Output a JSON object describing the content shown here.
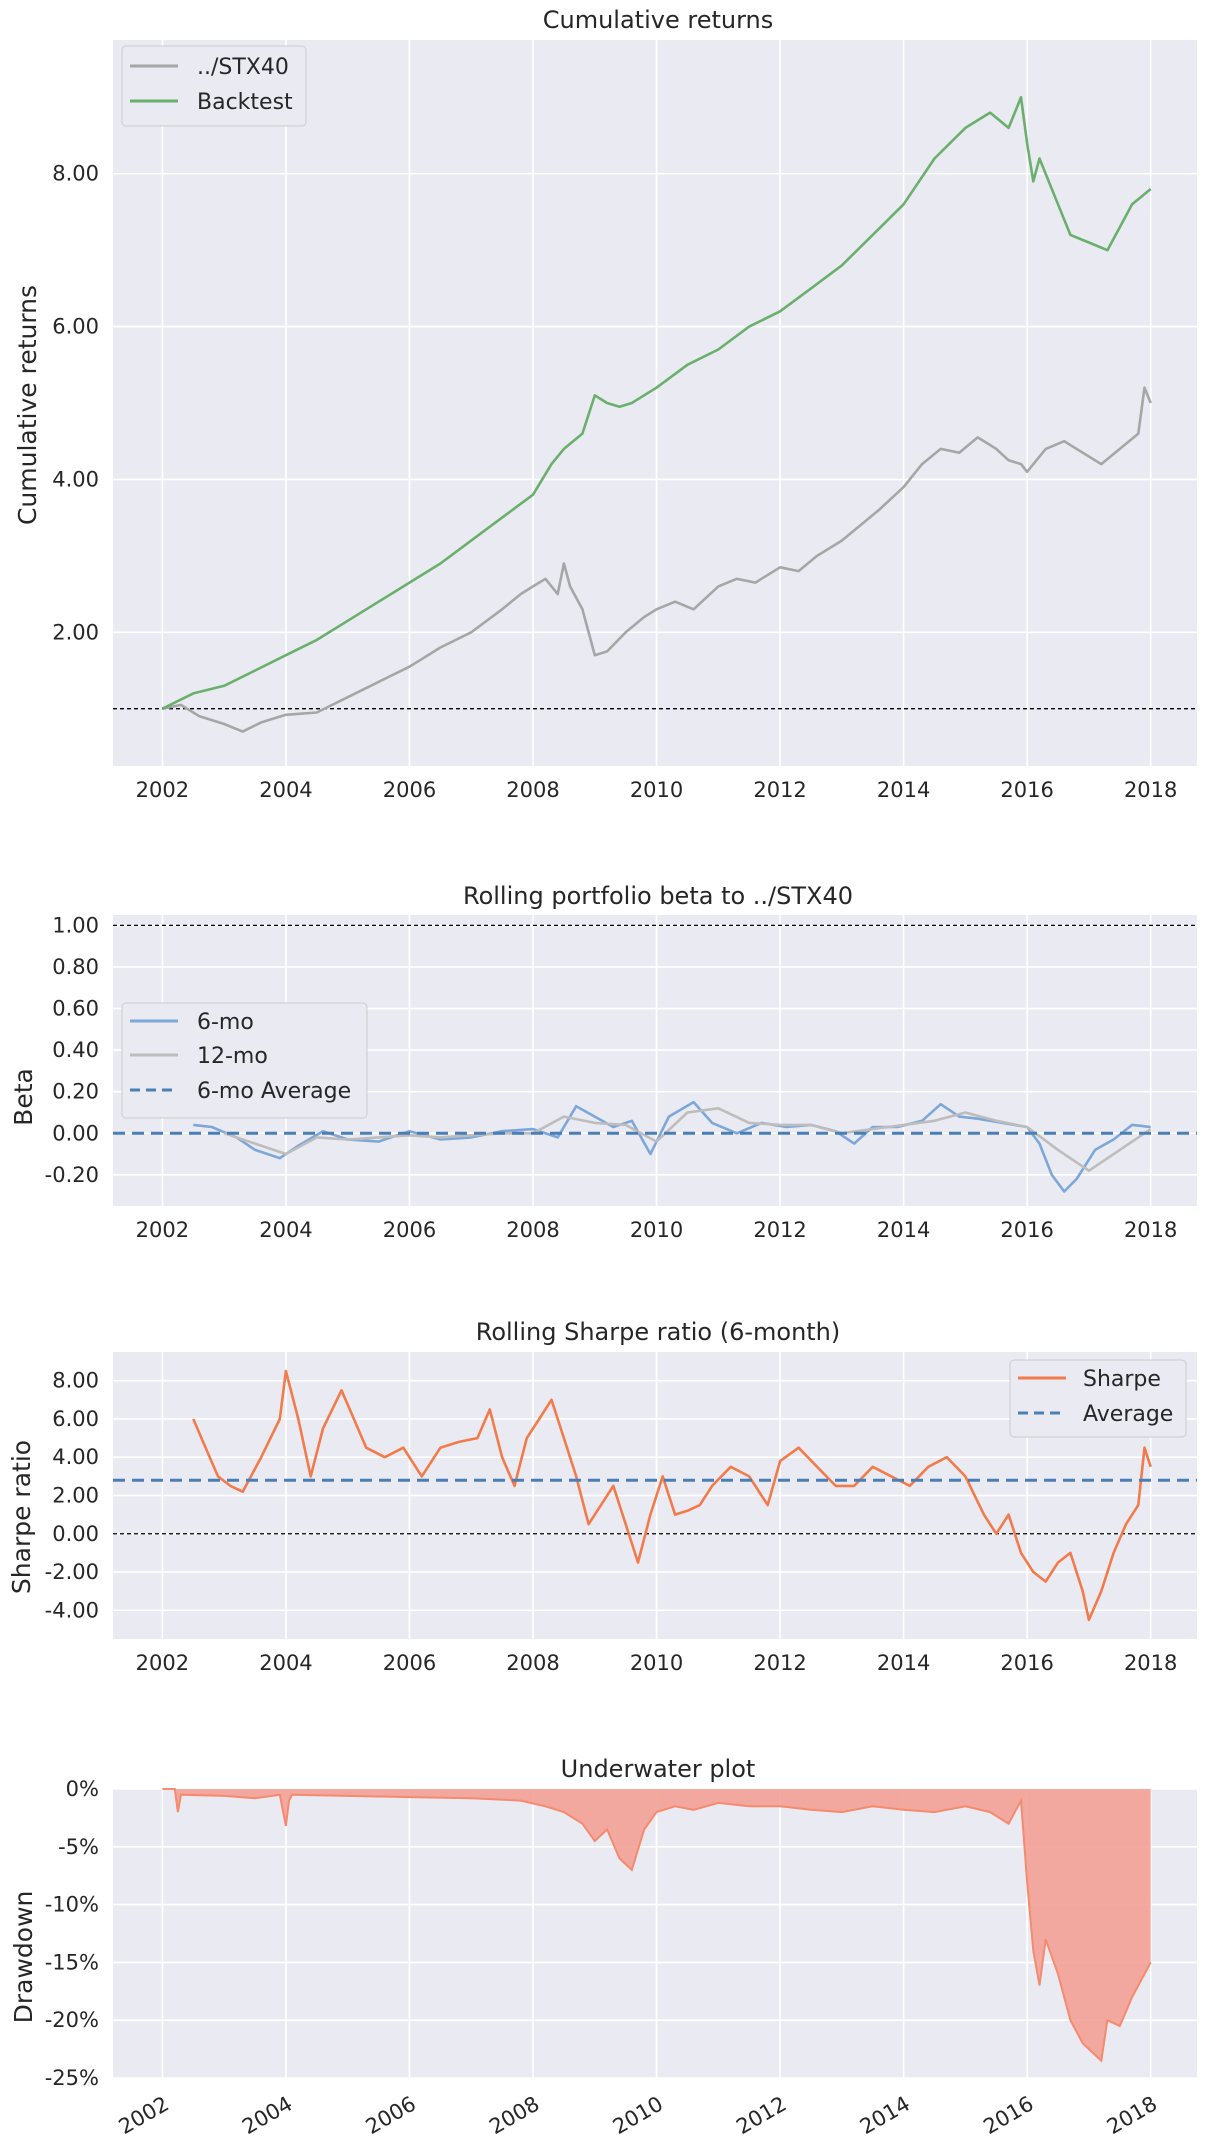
{
  "chart_data": [
    {
      "type": "line",
      "title": "Cumulative returns",
      "ylabel": "Cumulative returns",
      "xlim": [
        2001.2,
        2018.75
      ],
      "ylim": [
        0.25,
        9.75
      ],
      "yticks": [
        2,
        4,
        6,
        8
      ],
      "yticklabels": [
        "2.00",
        "4.00",
        "6.00",
        "8.00"
      ],
      "xticks": [
        2002,
        2004,
        2006,
        2008,
        2010,
        2012,
        2014,
        2016,
        2018
      ],
      "xticklabels": [
        "2002",
        "2004",
        "2006",
        "2008",
        "2010",
        "2012",
        "2014",
        "2016",
        "2018"
      ],
      "hline": 1.0,
      "grid": true,
      "legend_position": "top-left",
      "series": [
        {
          "name": "../STX40",
          "color": "#a6a6a6",
          "x": [
            2002.0,
            2002.3,
            2002.6,
            2003.0,
            2003.3,
            2003.6,
            2004.0,
            2004.5,
            2005.0,
            2005.5,
            2006.0,
            2006.5,
            2007.0,
            2007.5,
            2007.8,
            2008.0,
            2008.2,
            2008.4,
            2008.5,
            2008.6,
            2008.8,
            2009.0,
            2009.2,
            2009.5,
            2009.8,
            2010.0,
            2010.3,
            2010.6,
            2011.0,
            2011.3,
            2011.6,
            2012.0,
            2012.3,
            2012.6,
            2013.0,
            2013.3,
            2013.6,
            2014.0,
            2014.3,
            2014.6,
            2014.9,
            2015.2,
            2015.5,
            2015.7,
            2015.9,
            2016.0,
            2016.3,
            2016.6,
            2016.9,
            2017.2,
            2017.5,
            2017.8,
            2017.9,
            2018.0
          ],
          "y": [
            1.0,
            1.05,
            0.9,
            0.8,
            0.7,
            0.82,
            0.92,
            0.95,
            1.15,
            1.35,
            1.55,
            1.8,
            2.0,
            2.3,
            2.5,
            2.6,
            2.7,
            2.5,
            2.9,
            2.6,
            2.3,
            1.7,
            1.75,
            2.0,
            2.2,
            2.3,
            2.4,
            2.3,
            2.6,
            2.7,
            2.65,
            2.85,
            2.8,
            3.0,
            3.2,
            3.4,
            3.6,
            3.9,
            4.2,
            4.4,
            4.35,
            4.55,
            4.4,
            4.25,
            4.2,
            4.1,
            4.4,
            4.5,
            4.35,
            4.2,
            4.4,
            4.6,
            5.2,
            5.0
          ]
        },
        {
          "name": "Backtest",
          "color": "#6ab06c",
          "x": [
            2002.0,
            2002.5,
            2003.0,
            2003.5,
            2004.0,
            2004.5,
            2005.0,
            2005.5,
            2006.0,
            2006.5,
            2007.0,
            2007.5,
            2008.0,
            2008.3,
            2008.5,
            2008.8,
            2009.0,
            2009.2,
            2009.4,
            2009.6,
            2010.0,
            2010.5,
            2011.0,
            2011.5,
            2012.0,
            2012.5,
            2013.0,
            2013.5,
            2014.0,
            2014.5,
            2015.0,
            2015.4,
            2015.7,
            2015.9,
            2016.0,
            2016.1,
            2016.2,
            2016.5,
            2016.7,
            2017.0,
            2017.3,
            2017.5,
            2017.7,
            2018.0
          ],
          "y": [
            1.0,
            1.2,
            1.3,
            1.5,
            1.7,
            1.9,
            2.15,
            2.4,
            2.65,
            2.9,
            3.2,
            3.5,
            3.8,
            4.2,
            4.4,
            4.6,
            5.1,
            5.0,
            4.95,
            5.0,
            5.2,
            5.5,
            5.7,
            6.0,
            6.2,
            6.5,
            6.8,
            7.2,
            7.6,
            8.2,
            8.6,
            8.8,
            8.6,
            9.0,
            8.4,
            7.9,
            8.2,
            7.6,
            7.2,
            7.1,
            7.0,
            7.3,
            7.6,
            7.8
          ]
        }
      ]
    },
    {
      "type": "line",
      "title": "Rolling portfolio beta to ../STX40",
      "ylabel": "Beta",
      "xlim": [
        2001.2,
        2018.75
      ],
      "ylim": [
        -0.35,
        1.05
      ],
      "yticks": [
        -0.2,
        0,
        0.2,
        0.4,
        0.6,
        0.8,
        1.0
      ],
      "yticklabels": [
        "-0.20",
        "0.00",
        "0.20",
        "0.40",
        "0.60",
        "0.80",
        "1.00"
      ],
      "xticks": [
        2002,
        2004,
        2006,
        2008,
        2010,
        2012,
        2014,
        2016,
        2018
      ],
      "xticklabels": [
        "2002",
        "2004",
        "2006",
        "2008",
        "2010",
        "2012",
        "2014",
        "2016",
        "2018"
      ],
      "hline": 1.0,
      "avg_line": 0.0,
      "grid": true,
      "legend_position": "center-left",
      "series": [
        {
          "name": "6-mo",
          "color": "#7da7d9",
          "x": [
            2002.5,
            2002.8,
            2003.2,
            2003.5,
            2003.9,
            2004.2,
            2004.6,
            2005.0,
            2005.5,
            2006.0,
            2006.5,
            2007.0,
            2007.5,
            2008.0,
            2008.4,
            2008.7,
            2009.0,
            2009.3,
            2009.6,
            2009.9,
            2010.2,
            2010.6,
            2010.9,
            2011.3,
            2011.7,
            2012.1,
            2012.5,
            2012.9,
            2013.2,
            2013.5,
            2013.9,
            2014.3,
            2014.6,
            2014.9,
            2015.2,
            2015.6,
            2016.0,
            2016.2,
            2016.4,
            2016.6,
            2016.8,
            2017.1,
            2017.4,
            2017.7,
            2018.0
          ],
          "y": [
            0.04,
            0.03,
            -0.02,
            -0.08,
            -0.12,
            -0.06,
            0.01,
            -0.03,
            -0.04,
            0.01,
            -0.03,
            -0.02,
            0.01,
            0.02,
            -0.02,
            0.13,
            0.08,
            0.03,
            0.06,
            -0.1,
            0.08,
            0.15,
            0.05,
            0.0,
            0.05,
            0.03,
            0.04,
            0.01,
            -0.05,
            0.03,
            0.03,
            0.06,
            0.14,
            0.08,
            0.07,
            0.05,
            0.03,
            -0.05,
            -0.2,
            -0.28,
            -0.22,
            -0.08,
            -0.03,
            0.04,
            0.03
          ]
        },
        {
          "name": "12-mo",
          "color": "#bdbdbd",
          "x": [
            2003.0,
            2003.5,
            2004.0,
            2004.5,
            2005.0,
            2005.5,
            2006.0,
            2006.5,
            2007.0,
            2007.5,
            2008.0,
            2008.5,
            2009.0,
            2009.5,
            2010.0,
            2010.5,
            2011.0,
            2011.5,
            2012.0,
            2012.5,
            2013.0,
            2013.5,
            2014.0,
            2014.5,
            2015.0,
            2015.5,
            2016.0,
            2016.5,
            2017.0,
            2017.5,
            2018.0
          ],
          "y": [
            0.0,
            -0.05,
            -0.1,
            -0.02,
            -0.03,
            -0.02,
            -0.01,
            -0.02,
            -0.01,
            0.0,
            0.0,
            0.08,
            0.05,
            0.04,
            -0.04,
            0.1,
            0.12,
            0.05,
            0.04,
            0.04,
            0.0,
            0.02,
            0.04,
            0.06,
            0.1,
            0.06,
            0.03,
            -0.08,
            -0.18,
            -0.08,
            0.02
          ]
        }
      ]
    },
    {
      "type": "line",
      "title": "Rolling Sharpe ratio (6-month)",
      "ylabel": "Sharpe ratio",
      "xlim": [
        2001.2,
        2018.75
      ],
      "ylim": [
        -5.5,
        9.5
      ],
      "yticks": [
        -4,
        -2,
        0,
        2,
        4,
        6,
        8
      ],
      "yticklabels": [
        "-4.00",
        "-2.00",
        "0.00",
        "2.00",
        "4.00",
        "6.00",
        "8.00"
      ],
      "xticks": [
        2002,
        2004,
        2006,
        2008,
        2010,
        2012,
        2014,
        2016,
        2018
      ],
      "xticklabels": [
        "2002",
        "2004",
        "2006",
        "2008",
        "2010",
        "2012",
        "2014",
        "2016",
        "2018"
      ],
      "hline": 0.0,
      "avg_line": 2.8,
      "grid": true,
      "legend_position": "top-right",
      "series": [
        {
          "name": "Sharpe",
          "color": "#f37a4a",
          "x": [
            2002.5,
            2002.7,
            2002.9,
            2003.1,
            2003.3,
            2003.6,
            2003.9,
            2004.0,
            2004.2,
            2004.4,
            2004.6,
            2004.9,
            2005.1,
            2005.3,
            2005.6,
            2005.9,
            2006.2,
            2006.5,
            2006.8,
            2007.1,
            2007.3,
            2007.5,
            2007.7,
            2007.9,
            2008.1,
            2008.3,
            2008.5,
            2008.7,
            2008.9,
            2009.1,
            2009.3,
            2009.5,
            2009.7,
            2009.9,
            2010.1,
            2010.3,
            2010.5,
            2010.7,
            2010.9,
            2011.2,
            2011.5,
            2011.8,
            2012.0,
            2012.3,
            2012.6,
            2012.9,
            2013.2,
            2013.5,
            2013.8,
            2014.1,
            2014.4,
            2014.7,
            2015.0,
            2015.3,
            2015.5,
            2015.7,
            2015.9,
            2016.1,
            2016.3,
            2016.5,
            2016.7,
            2016.9,
            2017.0,
            2017.2,
            2017.4,
            2017.6,
            2017.8,
            2017.9,
            2018.0
          ],
          "y": [
            6.0,
            4.5,
            3.0,
            2.5,
            2.2,
            4.0,
            6.0,
            8.5,
            6.0,
            3.0,
            5.5,
            7.5,
            6.0,
            4.5,
            4.0,
            4.5,
            3.0,
            4.5,
            4.8,
            5.0,
            6.5,
            4.0,
            2.5,
            5.0,
            6.0,
            7.0,
            5.0,
            3.0,
            0.5,
            1.5,
            2.5,
            0.5,
            -1.5,
            1.0,
            3.0,
            1.0,
            1.2,
            1.5,
            2.5,
            3.5,
            3.0,
            1.5,
            3.8,
            4.5,
            3.5,
            2.5,
            2.5,
            3.5,
            3.0,
            2.5,
            3.5,
            4.0,
            3.0,
            1.0,
            0.0,
            1.0,
            -1.0,
            -2.0,
            -2.5,
            -1.5,
            -1.0,
            -3.0,
            -4.5,
            -3.0,
            -1.0,
            0.5,
            1.5,
            4.5,
            3.5
          ]
        }
      ]
    },
    {
      "type": "area",
      "title": "Underwater plot",
      "ylabel": "Drawdown",
      "xlim": [
        2001.2,
        2018.75
      ],
      "ylim": [
        -25,
        0
      ],
      "yticks": [
        -25,
        -20,
        -15,
        -10,
        -5,
        0
      ],
      "yticklabels": [
        "-25%",
        "-20%",
        "-15%",
        "-10%",
        "-5%",
        "0%"
      ],
      "xticks": [
        2002,
        2004,
        2006,
        2008,
        2010,
        2012,
        2014,
        2016,
        2018
      ],
      "xticklabels": [
        "2002",
        "2004",
        "2006",
        "2008",
        "2010",
        "2012",
        "2014",
        "2016",
        "2018"
      ],
      "grid": true,
      "series": [
        {
          "name": "Drawdown",
          "color": "#f4a196",
          "x": [
            2002.0,
            2002.2,
            2002.25,
            2002.3,
            2003.0,
            2003.5,
            2003.9,
            2004.0,
            2004.05,
            2004.1,
            2005.0,
            2006.0,
            2007.0,
            2007.8,
            2008.2,
            2008.5,
            2008.8,
            2009.0,
            2009.2,
            2009.4,
            2009.6,
            2009.8,
            2010.0,
            2010.3,
            2010.6,
            2011.0,
            2011.5,
            2012.0,
            2012.5,
            2013.0,
            2013.5,
            2014.0,
            2014.5,
            2015.0,
            2015.4,
            2015.7,
            2015.9,
            2016.0,
            2016.1,
            2016.2,
            2016.3,
            2016.5,
            2016.7,
            2016.9,
            2017.0,
            2017.2,
            2017.3,
            2017.5,
            2017.7,
            2017.9,
            2018.0
          ],
          "y": [
            0,
            0,
            -2.0,
            -0.5,
            -0.6,
            -0.8,
            -0.5,
            -3.2,
            -1.0,
            -0.5,
            -0.6,
            -0.7,
            -0.8,
            -1.0,
            -1.5,
            -2.0,
            -3.0,
            -4.5,
            -3.5,
            -6.0,
            -7.0,
            -3.5,
            -2.0,
            -1.5,
            -1.8,
            -1.2,
            -1.5,
            -1.5,
            -1.8,
            -2.0,
            -1.5,
            -1.8,
            -2.0,
            -1.5,
            -2.0,
            -3.0,
            -1.0,
            -8.0,
            -14.0,
            -17.0,
            -13.0,
            -16.0,
            -20.0,
            -22.0,
            -22.5,
            -23.5,
            -20.0,
            -20.5,
            -18.0,
            -16.0,
            -15.0
          ]
        }
      ]
    }
  ],
  "legends": {
    "returns": [
      "../STX40",
      "Backtest"
    ],
    "beta": [
      "6-mo",
      "12-mo",
      "6-mo Average"
    ],
    "sharpe": [
      "Sharpe",
      "Average"
    ]
  }
}
